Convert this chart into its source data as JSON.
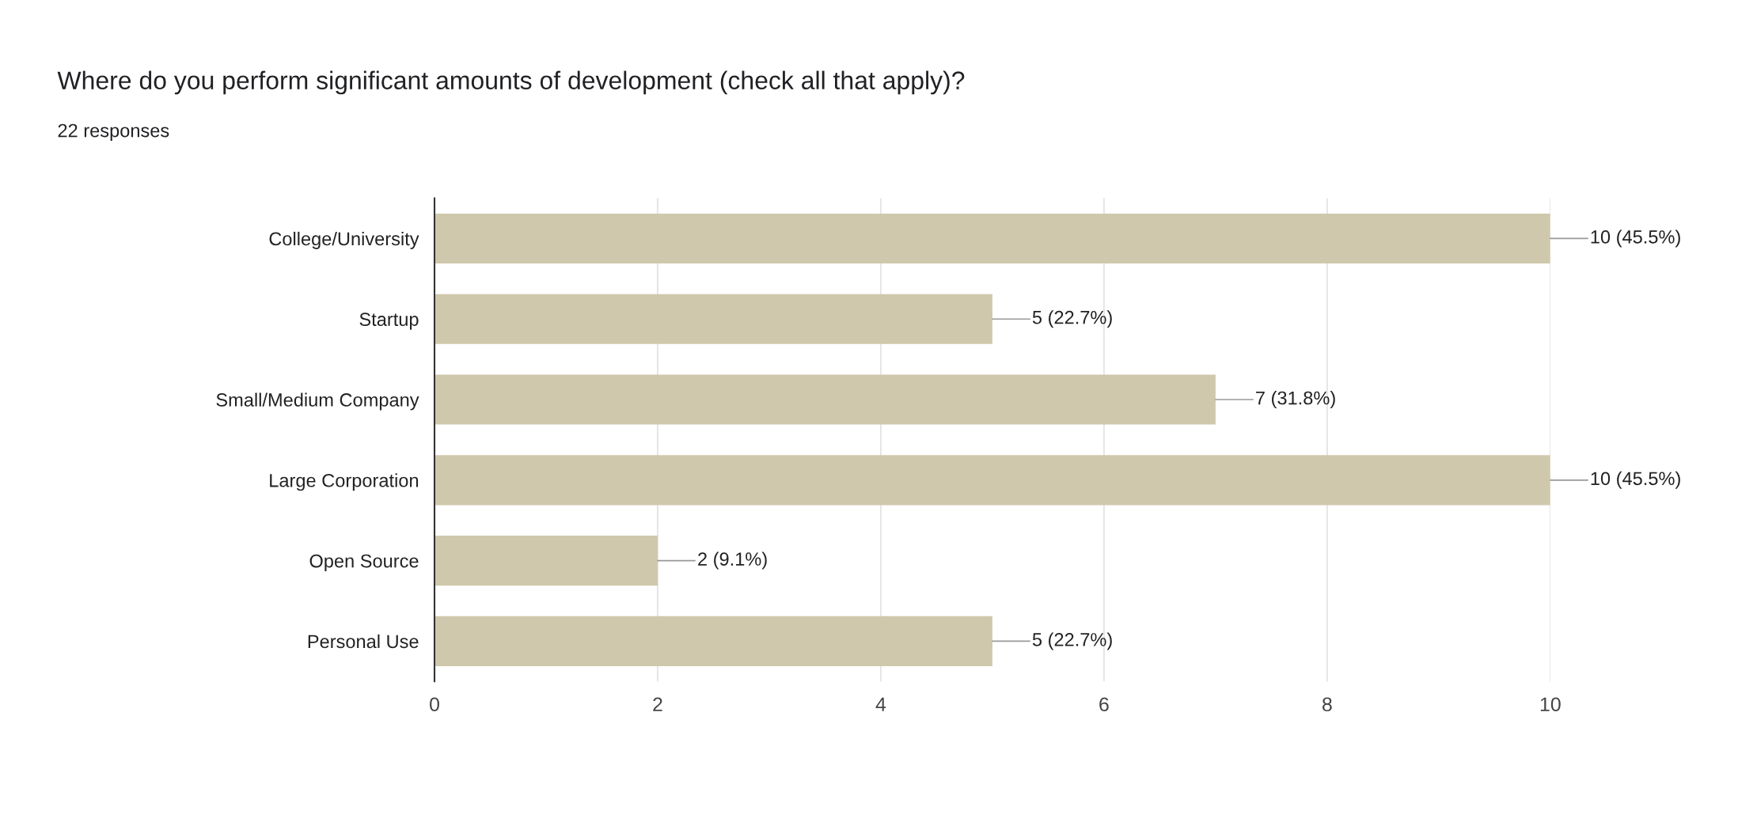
{
  "chart_data": {
    "type": "bar",
    "orientation": "horizontal",
    "title": "Where do you perform significant amounts of development (check all that apply)?",
    "subtitle": "22 responses",
    "categories": [
      "College/University",
      "Startup",
      "Small/Medium Company",
      "Large Corporation",
      "Open Source",
      "Personal Use"
    ],
    "values": [
      10,
      5,
      7,
      10,
      2,
      5
    ],
    "value_labels": [
      "10 (45.5%)",
      "5 (22.7%)",
      "7 (31.8%)",
      "10 (45.5%)",
      "2 (9.1%)",
      "5 (22.7%)"
    ],
    "color": "#d0c8ad",
    "xlim": [
      0,
      10
    ],
    "xticks": [
      0,
      2,
      4,
      6,
      8,
      10
    ],
    "grid": "x",
    "legend": false
  }
}
